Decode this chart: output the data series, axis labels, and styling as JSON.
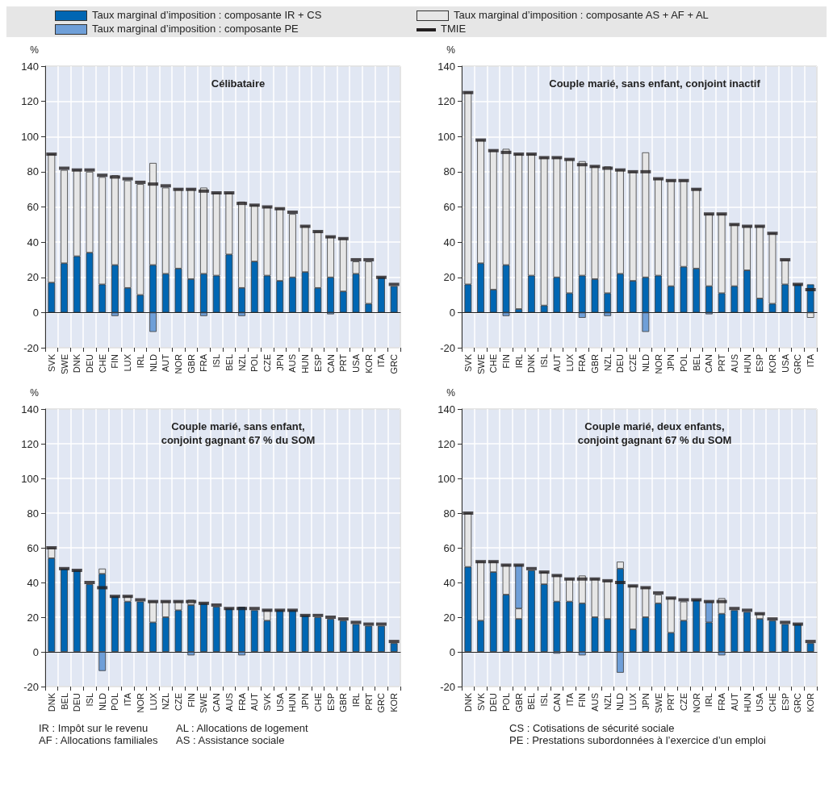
{
  "chart_data": [
    {
      "type": "bar",
      "stacked": true,
      "title": "Célibataire",
      "ylabel": "%",
      "legend": "top",
      "grid": true,
      "ylim": [
        -20,
        140
      ],
      "yticks": [
        -20,
        0,
        20,
        40,
        60,
        80,
        100,
        120,
        140
      ],
      "categories": [
        "SVK",
        "SWE",
        "DNK",
        "DEU",
        "CHE",
        "FIN",
        "LUX",
        "IRL",
        "NLD",
        "AUT",
        "NOR",
        "GBR",
        "FRA",
        "ISL",
        "BEL",
        "NZL",
        "POL",
        "CZE",
        "JPN",
        "AUS",
        "HUN",
        "ESP",
        "CAN",
        "PRT",
        "USA",
        "KOR",
        "ITA",
        "GRC"
      ],
      "series": [
        {
          "name": "Taux marginal d’imposition : composante IR + CS",
          "color": "#0066b3",
          "values": [
            17,
            28,
            32,
            34,
            16,
            27,
            14,
            10,
            27,
            22,
            25,
            19,
            22,
            21,
            33,
            14,
            29,
            21,
            18,
            20,
            23,
            14,
            20,
            12,
            22,
            5,
            20,
            15
          ]
        },
        {
          "name": "Taux marginal d’imposition : composante AS + AF + AL",
          "color": "#e6e6e6",
          "values": [
            73,
            53,
            49,
            46,
            61,
            51,
            61,
            63,
            58,
            49,
            45,
            51,
            49,
            47,
            35,
            49,
            32,
            39,
            41,
            36,
            26,
            32,
            23,
            30,
            7,
            24,
            null,
            null
          ]
        },
        {
          "name": "Taux marginal d’imposition : composante PE",
          "color": "#6f9fd8",
          "values": [
            null,
            null,
            null,
            null,
            null,
            -2,
            null,
            null,
            -11,
            null,
            null,
            null,
            -2,
            null,
            null,
            -2,
            null,
            null,
            null,
            null,
            null,
            null,
            -1,
            null,
            null,
            null,
            null,
            null
          ]
        },
        {
          "name": "TMIE",
          "type": "scatter",
          "color": "#231f20",
          "values": [
            90,
            82,
            81,
            81,
            78,
            77,
            76,
            74,
            73,
            72,
            70,
            70,
            69,
            68,
            68,
            62,
            61,
            60,
            59,
            57,
            49,
            46,
            43,
            42,
            30,
            30,
            20,
            16
          ]
        }
      ]
    },
    {
      "type": "bar",
      "stacked": true,
      "title": "Couple marié, sans enfant, conjoint inactif",
      "ylabel": "%",
      "grid": true,
      "ylim": [
        -20,
        140
      ],
      "yticks": [
        -20,
        0,
        20,
        40,
        60,
        80,
        100,
        120,
        140
      ],
      "categories": [
        "SVK",
        "SWE",
        "CHE",
        "FIN",
        "IRL",
        "DNK",
        "ISL",
        "AUT",
        "LUX",
        "FRA",
        "GBR",
        "NZL",
        "DEU",
        "CZE",
        "NLD",
        "NOR",
        "JPN",
        "POL",
        "BEL",
        "CAN",
        "PRT",
        "AUS",
        "HUN",
        "ESP",
        "KOR",
        "USA",
        "GRC",
        "ITA"
      ],
      "series": [
        {
          "color": "#0066b3",
          "values": [
            16,
            28,
            13,
            27,
            2,
            21,
            4,
            20,
            11,
            21,
            19,
            11,
            22,
            18,
            20,
            21,
            15,
            26,
            25,
            15,
            11,
            15,
            24,
            8,
            5,
            16,
            16,
            16
          ]
        },
        {
          "color": "#e6e6e6",
          "values": [
            109,
            70,
            79,
            66,
            88,
            69,
            84,
            68,
            76,
            65,
            64,
            72,
            59,
            62,
            71,
            55,
            60,
            49,
            45,
            41,
            45,
            35,
            25,
            41,
            40,
            14,
            null,
            -3
          ]
        },
        {
          "color": "#6f9fd8",
          "values": [
            null,
            null,
            null,
            -2,
            null,
            null,
            null,
            null,
            null,
            -3,
            null,
            -2,
            null,
            null,
            -11,
            null,
            null,
            null,
            null,
            -1,
            null,
            null,
            null,
            null,
            null,
            null,
            null,
            null
          ]
        },
        {
          "type": "scatter",
          "color": "#231f20",
          "values": [
            125,
            98,
            92,
            91,
            90,
            90,
            88,
            88,
            87,
            84,
            83,
            82,
            81,
            80,
            80,
            76,
            75,
            75,
            70,
            56,
            56,
            50,
            49,
            49,
            45,
            30,
            16,
            13
          ]
        }
      ]
    },
    {
      "type": "bar",
      "stacked": true,
      "title": "Couple marié, sans enfant,\nconjoint gagnant 67 % du SOM",
      "ylabel": "%",
      "grid": true,
      "ylim": [
        -20,
        140
      ],
      "yticks": [
        -20,
        0,
        20,
        40,
        60,
        80,
        100,
        120,
        140
      ],
      "categories": [
        "DNK",
        "BEL",
        "DEU",
        "ISL",
        "NLD",
        "POL",
        "ITA",
        "NOR",
        "LUX",
        "NZL",
        "CZE",
        "FIN",
        "SWE",
        "CAN",
        "AUS",
        "FRA",
        "AUT",
        "SVK",
        "USA",
        "HUN",
        "JPN",
        "CHE",
        "ESP",
        "GBR",
        "IRL",
        "PRT",
        "GRC",
        "KOR"
      ],
      "series": [
        {
          "color": "#0066b3",
          "values": [
            54,
            48,
            47,
            39,
            45,
            32,
            29,
            29,
            17,
            20,
            24,
            27,
            28,
            26,
            25,
            26,
            24,
            18,
            24,
            24,
            21,
            20,
            19,
            18,
            16,
            15,
            15,
            5
          ]
        },
        {
          "color": "#e6e6e6",
          "values": [
            6,
            null,
            null,
            null,
            3,
            null,
            3,
            null,
            12,
            9,
            5,
            3,
            null,
            null,
            null,
            null,
            null,
            6,
            null,
            null,
            null,
            null,
            null,
            null,
            null,
            null,
            null,
            null
          ]
        },
        {
          "color": "#6f9fd8",
          "values": [
            null,
            null,
            null,
            null,
            -11,
            null,
            null,
            null,
            null,
            null,
            null,
            -2,
            null,
            null,
            null,
            -2,
            null,
            null,
            null,
            null,
            null,
            null,
            null,
            null,
            null,
            null,
            null,
            null
          ]
        },
        {
          "type": "scatter",
          "color": "#231f20",
          "values": [
            60,
            48,
            47,
            40,
            37,
            32,
            32,
            30,
            29,
            29,
            29,
            29,
            28,
            27,
            25,
            25,
            25,
            24,
            24,
            24,
            21,
            21,
            20,
            19,
            17,
            16,
            16,
            6
          ]
        }
      ]
    },
    {
      "type": "bar",
      "stacked": true,
      "title": "Couple marié, deux enfants,\nconjoint gagnant 67 % du SOM",
      "ylabel": "%",
      "grid": true,
      "ylim": [
        -20,
        140
      ],
      "yticks": [
        -20,
        0,
        20,
        40,
        60,
        80,
        100,
        120,
        140
      ],
      "categories": [
        "DNK",
        "SVK",
        "DEU",
        "POL",
        "GBR",
        "BEL",
        "ISL",
        "CAN",
        "ITA",
        "FIN",
        "AUS",
        "NZL",
        "NLD",
        "LUX",
        "JPN",
        "SWE",
        "PRT",
        "CZE",
        "NOR",
        "IRL",
        "FRA",
        "AUT",
        "HUN",
        "USA",
        "CHE",
        "ESP",
        "GRC",
        "KOR"
      ],
      "annotations": [
        "IR : Impôt sur le revenu",
        "AF : Allocations familiales",
        "AL : Allocations de logement",
        "AS : Assistance sociale",
        "CS : Cotisations de sécurité sociale",
        "PE : Prestations subordonnées à l’exercice d’un emploi"
      ],
      "series": [
        {
          "color": "#0066b3",
          "values": [
            49,
            18,
            46,
            33,
            19,
            47,
            39,
            29,
            29,
            28,
            20,
            19,
            48,
            13,
            20,
            28,
            11,
            18,
            30,
            17,
            22,
            24,
            23,
            19,
            18,
            16,
            16,
            5
          ]
        },
        {
          "color": "#e6e6e6",
          "values": [
            31,
            34,
            6,
            17,
            6,
            null,
            7,
            15,
            13,
            16,
            22,
            22,
            4,
            25,
            17,
            5,
            20,
            11,
            null,
            null,
            9,
            null,
            null,
            3,
            null,
            null,
            null,
            null
          ]
        },
        {
          "color": "#6f9fd8",
          "values": [
            null,
            null,
            null,
            null,
            25,
            null,
            null,
            -1,
            null,
            -2,
            null,
            null,
            -12,
            null,
            null,
            null,
            null,
            null,
            null,
            12,
            -2,
            null,
            null,
            null,
            null,
            null,
            null,
            null
          ]
        },
        {
          "type": "scatter",
          "color": "#231f20",
          "values": [
            80,
            52,
            52,
            50,
            50,
            48,
            46,
            44,
            42,
            42,
            42,
            41,
            40,
            38,
            37,
            34,
            31,
            30,
            30,
            29,
            29,
            25,
            24,
            22,
            19,
            17,
            16,
            6
          ]
        }
      ]
    }
  ]
}
